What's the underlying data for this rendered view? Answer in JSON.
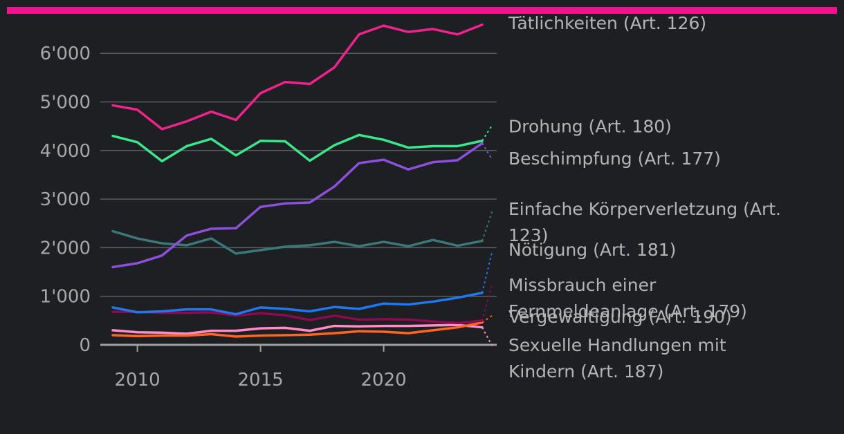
{
  "chart_data": {
    "type": "line",
    "title": "",
    "xlabel": "",
    "ylabel": "",
    "xlim": [
      2008.6,
      2024.9
    ],
    "ylim": [
      0,
      6800
    ],
    "grid": true,
    "x_ticks": [
      2010,
      2015,
      2020
    ],
    "x_tick_labels": [
      "2010",
      "2015",
      "2020"
    ],
    "y_ticks": [
      0,
      1000,
      2000,
      3000,
      4000,
      5000,
      6000
    ],
    "y_tick_labels": [
      "0",
      "1'000",
      "2'000",
      "3'000",
      "4'000",
      "5'000",
      "6'000"
    ],
    "x": [
      2009,
      2010,
      2011,
      2012,
      2013,
      2014,
      2015,
      2016,
      2017,
      2018,
      2019,
      2020,
      2021,
      2022,
      2023,
      2024
    ],
    "projection_x": [
      2024,
      2024.4
    ],
    "series": [
      {
        "name": "Tätlichkeiten (Art. 126)",
        "name_lines": [
          "Tätlichkeiten (Art. 126)"
        ],
        "label_value": 6630,
        "color": "#f0238c",
        "values": [
          4930,
          4840,
          4440,
          4600,
          4800,
          4630,
          5180,
          5410,
          5370,
          5710,
          6390,
          6570,
          6440,
          6500,
          6390,
          6590
        ]
      },
      {
        "name": "Drohung (Art. 180)",
        "name_lines": [
          "Drohung (Art. 180)"
        ],
        "label_value": 4500,
        "color": "#3ce68c",
        "values": [
          4300,
          4170,
          3780,
          4090,
          4240,
          3900,
          4200,
          4190,
          3790,
          4110,
          4320,
          4220,
          4060,
          4090,
          4090,
          4200
        ],
        "projection": [
          4200,
          4520
        ]
      },
      {
        "name": "Beschimpfung (Art. 177)",
        "name_lines": [
          "Beschimpfung (Art. 177)"
        ],
        "label_value": 3840,
        "color": "#8c50dc",
        "values": [
          1600,
          1680,
          1840,
          2250,
          2390,
          2400,
          2840,
          2910,
          2930,
          3260,
          3740,
          3810,
          3610,
          3760,
          3800,
          4150
        ],
        "projection": [
          4150,
          3820
        ]
      },
      {
        "name": "Einfache Körperverletzung (Art. 123)",
        "name_lines": [
          "Einfache Körperverletzung (Art.",
          "123)"
        ],
        "label_value": 2800,
        "color": "#3c7878",
        "values": [
          2340,
          2190,
          2090,
          2050,
          2190,
          1880,
          1950,
          2020,
          2050,
          2120,
          2030,
          2120,
          2030,
          2160,
          2040,
          2140
        ],
        "projection": [
          2140,
          2740
        ]
      },
      {
        "name": "Nötigung (Art. 181)",
        "name_lines": [
          "Nötigung (Art. 181)"
        ],
        "label_value": 1960,
        "color": "#1e78f0",
        "values": [
          770,
          670,
          690,
          730,
          730,
          630,
          770,
          740,
          690,
          780,
          740,
          850,
          830,
          890,
          970,
          1070
        ],
        "projection": [
          1070,
          1910
        ]
      },
      {
        "name": "Missbrauch einer Fernmeldeanlage (Art. 179)",
        "name_lines": [
          "Missbrauch einer",
          "Fernmeldeanlage (Art. 179)"
        ],
        "label_value": 1240,
        "color": "#8c0a50",
        "values": [
          680,
          680,
          660,
          660,
          670,
          600,
          650,
          610,
          510,
          600,
          520,
          530,
          520,
          480,
          450,
          500
        ],
        "projection": [
          500,
          1240
        ]
      },
      {
        "name": "Vergewaltigung (Art. 190)",
        "name_lines": [
          "Vergewaltigung (Art. 190)"
        ],
        "label_value": 580,
        "color": "#ff6420",
        "values": [
          200,
          180,
          190,
          190,
          220,
          170,
          190,
          200,
          210,
          240,
          280,
          270,
          240,
          300,
          360,
          460
        ],
        "projection": [
          460,
          600
        ]
      },
      {
        "name": "Sexuelle Handlungen mit Kindern (Art. 187)",
        "name_lines": [
          "Sexuelle Handlungen mit",
          "Kindern (Art. 187)"
        ],
        "label_value": 0,
        "color": "#ff8cc8",
        "values": [
          300,
          260,
          250,
          230,
          290,
          290,
          340,
          350,
          290,
          390,
          380,
          390,
          390,
          400,
          410,
          360
        ],
        "projection": [
          360,
          -20
        ]
      }
    ]
  }
}
